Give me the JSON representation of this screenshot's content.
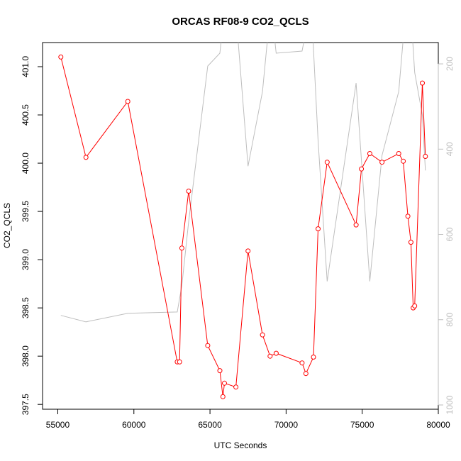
{
  "chart_data": {
    "type": "line",
    "title": "ORCAS RF08-9 CO2_QCLS",
    "xlabel": "UTC Seconds",
    "ylabel": "CO2_QCLS",
    "xlim": [
      54000,
      80000
    ],
    "ylim": [
      397.45,
      401.25
    ],
    "x_ticks": [
      55000,
      60000,
      65000,
      70000,
      75000,
      80000
    ],
    "x_tick_labels": [
      "55000",
      "60000",
      "65000",
      "70000",
      "75000",
      "80000"
    ],
    "y_ticks": [
      397.5,
      398.0,
      398.5,
      399.0,
      399.5,
      400.0,
      400.5,
      401.0
    ],
    "y_tick_labels": [
      "397.5",
      "398.0",
      "398.5",
      "399.0",
      "399.5",
      "400.0",
      "400.5",
      "401.0"
    ],
    "y2_lim": [
      1010,
      150
    ],
    "y2_ticks": [
      200,
      400,
      600,
      800,
      1000
    ],
    "y2_tick_labels": [
      "200",
      "400",
      "600",
      "800",
      "1000"
    ],
    "grid": false,
    "series": [
      {
        "color": "#ff0000",
        "axis": "left",
        "markers": true,
        "x": [
          55200,
          56850,
          59600,
          62850,
          63000,
          63150,
          63600,
          64850,
          65650,
          65850,
          65950,
          66700,
          67500,
          68450,
          68950,
          69350,
          71050,
          71300,
          71800,
          72100,
          72700,
          74600,
          74950,
          75500,
          76300,
          77400,
          77700,
          78000,
          78200,
          78350,
          78450,
          78950,
          79150
        ],
        "y": [
          401.1,
          400.06,
          400.64,
          397.94,
          397.94,
          399.12,
          399.71,
          398.11,
          397.85,
          397.58,
          397.72,
          397.68,
          399.09,
          398.22,
          398.0,
          398.03,
          397.93,
          397.82,
          397.99,
          399.32,
          400.01,
          399.36,
          399.94,
          400.1,
          400.01,
          400.1,
          400.02,
          399.45,
          399.18,
          398.5,
          398.52,
          400.83,
          400.07
        ]
      },
      {
        "color": "#bebebe",
        "axis": "right",
        "markers": false,
        "x": [
          55200,
          56850,
          59600,
          62850,
          63150,
          63600,
          64850,
          65650,
          66000,
          66700,
          67500,
          68450,
          69000,
          69350,
          71050,
          71650,
          72100,
          72700,
          74600,
          75500,
          76300,
          77400,
          77700,
          78200,
          78450,
          78950,
          79150
        ],
        "y": [
          790,
          805,
          785,
          782,
          720,
          570,
          205,
          175,
          60,
          80,
          440,
          265,
          60,
          175,
          170,
          60,
          380,
          710,
          245,
          710,
          415,
          265,
          140,
          80,
          220,
          320,
          450
        ]
      }
    ]
  }
}
